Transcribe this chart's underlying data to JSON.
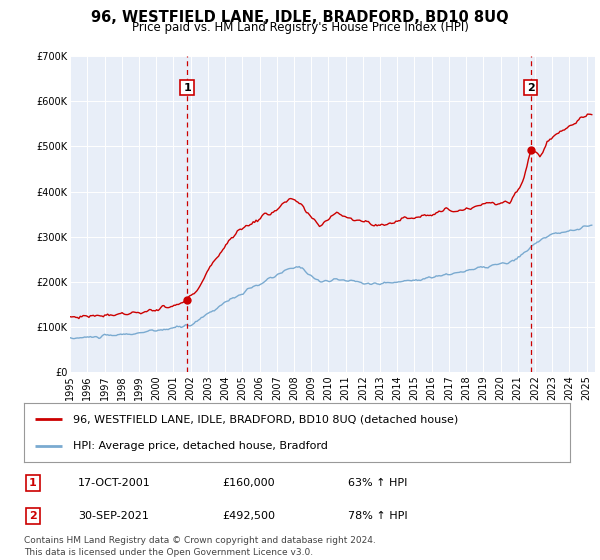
{
  "title": "96, WESTFIELD LANE, IDLE, BRADFORD, BD10 8UQ",
  "subtitle": "Price paid vs. HM Land Registry's House Price Index (HPI)",
  "title_fontsize": 10.5,
  "subtitle_fontsize": 8.5,
  "background_color": "#ffffff",
  "plot_bg_color": "#e8eef8",
  "grid_color": "#ffffff",
  "red_color": "#cc0000",
  "blue_color": "#7aaad0",
  "ylim": [
    0,
    700000
  ],
  "yticks": [
    0,
    100000,
    200000,
    300000,
    400000,
    500000,
    600000,
    700000
  ],
  "ytick_labels": [
    "£0",
    "£100K",
    "£200K",
    "£300K",
    "£400K",
    "£500K",
    "£600K",
    "£700K"
  ],
  "xlim_start": 1995.0,
  "xlim_end": 2025.5,
  "xticks": [
    1995,
    1996,
    1997,
    1998,
    1999,
    2000,
    2001,
    2002,
    2003,
    2004,
    2005,
    2006,
    2007,
    2008,
    2009,
    2010,
    2011,
    2012,
    2013,
    2014,
    2015,
    2016,
    2017,
    2018,
    2019,
    2020,
    2021,
    2022,
    2023,
    2024,
    2025
  ],
  "sale1_x": 2001.79,
  "sale1_y": 160000,
  "sale2_x": 2021.75,
  "sale2_y": 492500,
  "vline1_x": 2001.79,
  "vline2_x": 2021.75,
  "legend_label1": "96, WESTFIELD LANE, IDLE, BRADFORD, BD10 8UQ (detached house)",
  "legend_label2": "HPI: Average price, detached house, Bradford",
  "table_entries": [
    {
      "num": "1",
      "date": "17-OCT-2001",
      "price": "£160,000",
      "change": "63% ↑ HPI"
    },
    {
      "num": "2",
      "date": "30-SEP-2021",
      "price": "£492,500",
      "change": "78% ↑ HPI"
    }
  ],
  "footnote": "Contains HM Land Registry data © Crown copyright and database right 2024.\nThis data is licensed under the Open Government Licence v3.0.",
  "footnote_fontsize": 6.5,
  "legend_fontsize": 8,
  "table_fontsize": 8,
  "tick_fontsize": 7
}
